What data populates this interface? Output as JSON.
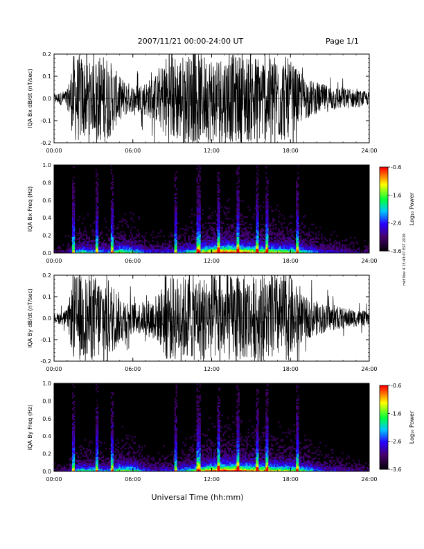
{
  "header": {
    "title": "2007/11/21  00:00-24:00 UT",
    "page": "Page 1/1"
  },
  "footer": {
    "xlabel": "Universal Time (hh:mm)",
    "side_note": "mkf Nov 4 15:43:07 EST 2019"
  },
  "chart_data": [
    {
      "type": "line",
      "title": "",
      "ylabel": "IQA Bx dB/dt (nT/sec)",
      "xlabel": "",
      "x_ticks": [
        "00:00",
        "06:00",
        "12:00",
        "18:00",
        "24:00"
      ],
      "xlim": [
        0,
        24
      ],
      "ylim": [
        -0.2,
        0.2
      ],
      "y_ticks": [
        "-0.2",
        "-0.1",
        "0.0",
        "0.1",
        "0.2"
      ],
      "envelope": {
        "x": [
          0,
          1,
          1.5,
          2,
          3,
          3.5,
          4,
          5,
          6,
          7,
          8,
          8.5,
          9,
          10,
          11,
          12,
          13,
          14,
          15,
          16,
          17,
          17.5,
          18,
          19,
          20,
          21,
          22,
          23,
          24
        ],
        "amp": [
          0.02,
          0.04,
          0.2,
          0.2,
          0.15,
          0.2,
          0.2,
          0.1,
          0.06,
          0.08,
          0.12,
          0.2,
          0.2,
          0.2,
          0.2,
          0.2,
          0.2,
          0.2,
          0.2,
          0.2,
          0.2,
          0.2,
          0.17,
          0.1,
          0.07,
          0.06,
          0.05,
          0.04,
          0.03
        ]
      }
    },
    {
      "type": "heatmap",
      "title": "",
      "ylabel": "IQA Bx Freq (Hz)",
      "x_ticks": [
        "00:00",
        "06:00",
        "12:00",
        "18:00",
        "24:00"
      ],
      "xlim": [
        0,
        24
      ],
      "ylim": [
        0,
        1.0
      ],
      "y_ticks": [
        "0.0",
        "0.2",
        "0.4",
        "0.6",
        "0.8",
        "1.0"
      ],
      "colorbar": {
        "label": "Log₁₀ Power",
        "range": [
          -3.6,
          -0.6
        ],
        "ticks": [
          "-0.6",
          "-1.6",
          "-2.6",
          "-3.6"
        ]
      }
    },
    {
      "type": "line",
      "title": "",
      "ylabel": "IQA By dB/dt (nT/sec)",
      "xlabel": "",
      "x_ticks": [
        "00:00",
        "06:00",
        "12:00",
        "18:00",
        "24:00"
      ],
      "xlim": [
        0,
        24
      ],
      "ylim": [
        -0.2,
        0.2
      ],
      "y_ticks": [
        "-0.2",
        "-0.1",
        "0.0",
        "0.1",
        "0.2"
      ],
      "envelope": {
        "x": [
          0,
          1,
          1.5,
          2,
          3,
          3.5,
          4,
          5,
          6,
          7,
          8,
          8.5,
          9,
          10,
          11,
          12,
          13,
          14,
          15,
          16,
          17,
          17.5,
          18,
          19,
          20,
          21,
          22,
          23,
          24
        ],
        "amp": [
          0.02,
          0.04,
          0.2,
          0.2,
          0.2,
          0.2,
          0.2,
          0.12,
          0.07,
          0.08,
          0.12,
          0.2,
          0.2,
          0.2,
          0.2,
          0.2,
          0.2,
          0.2,
          0.2,
          0.2,
          0.2,
          0.2,
          0.2,
          0.1,
          0.08,
          0.06,
          0.05,
          0.04,
          0.03
        ]
      }
    },
    {
      "type": "heatmap",
      "title": "",
      "ylabel": "IQA By Freq (Hz)",
      "x_ticks": [
        "00:00",
        "06:00",
        "12:00",
        "18:00",
        "24:00"
      ],
      "xlim": [
        0,
        24
      ],
      "ylim": [
        0,
        1.0
      ],
      "y_ticks": [
        "0.0",
        "0.2",
        "0.4",
        "0.6",
        "0.8",
        "1.0"
      ],
      "colorbar": {
        "label": "Log₁₀ Power",
        "range": [
          -3.6,
          -0.6
        ],
        "ticks": [
          "-0.6",
          "-1.6",
          "-2.6",
          "-3.6"
        ]
      }
    }
  ]
}
